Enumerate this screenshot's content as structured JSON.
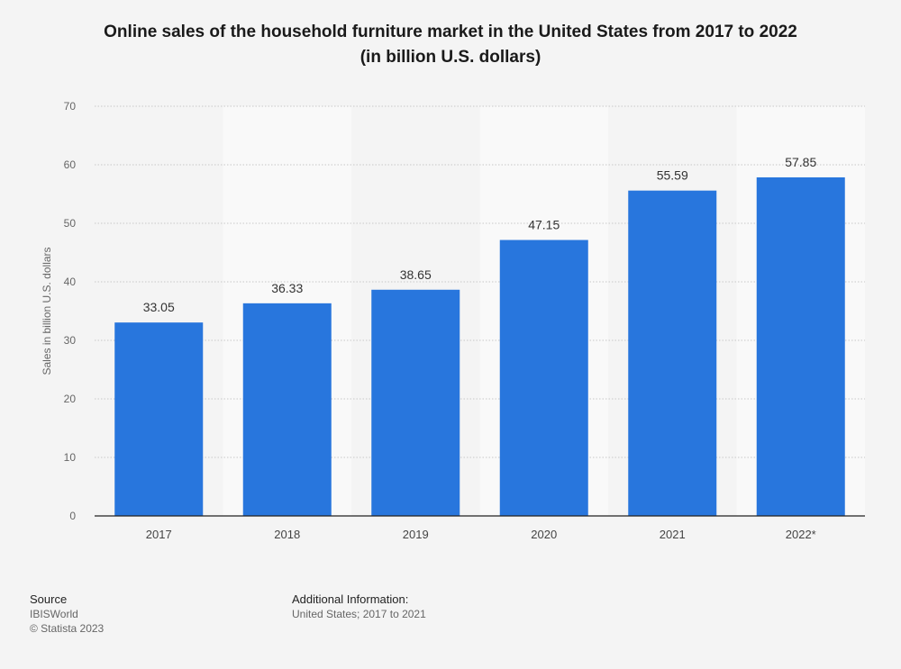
{
  "title_line1": "Online sales of the household furniture market in the United States from 2017 to 2022",
  "title_line2": "(in billion U.S. dollars)",
  "chart_data": {
    "type": "bar",
    "categories": [
      "2017",
      "2018",
      "2019",
      "2020",
      "2021",
      "2022*"
    ],
    "values": [
      33.05,
      36.33,
      38.65,
      47.15,
      55.59,
      57.85
    ],
    "value_labels": [
      "33.05",
      "36.33",
      "38.65",
      "47.15",
      "55.59",
      "57.85"
    ],
    "ylabel": "Sales in billion U.S. dollars",
    "ylim": [
      0,
      70
    ],
    "yticks": [
      "0",
      "10",
      "20",
      "30",
      "40",
      "50",
      "60",
      "70"
    ],
    "grid": true,
    "bar_color": "#2876dd",
    "alt_band_color": "#f9f9f9"
  },
  "footer": {
    "source_heading": "Source",
    "source_name": "IBISWorld",
    "copyright": "© Statista 2023",
    "additional_heading": "Additional Information:",
    "additional_text": "United States; 2017 to 2021"
  }
}
